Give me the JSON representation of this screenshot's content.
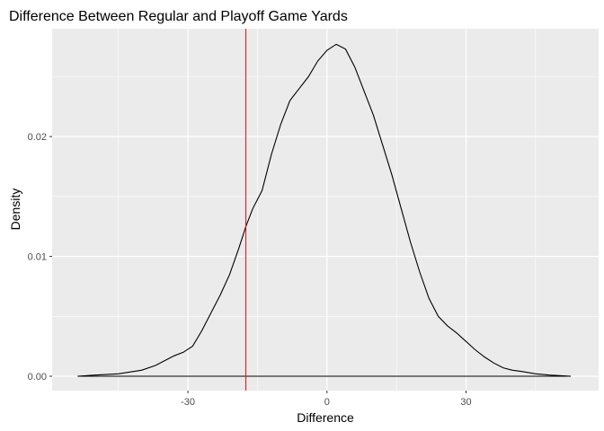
{
  "chart_data": {
    "type": "line",
    "title": "Difference Between Regular and Playoff Game Yards",
    "xlabel": "Difference",
    "ylabel": "Density",
    "xlim": [
      -59.3,
      58.6
    ],
    "ylim": [
      -0.0012,
      0.029
    ],
    "x_ticks": [
      -30,
      0,
      30
    ],
    "y_ticks": [
      0.0,
      0.01,
      0.02
    ],
    "y_tick_labels": [
      "0.00",
      "0.01",
      "0.02"
    ],
    "x_minor_ticks": [
      -45,
      -15,
      15,
      45
    ],
    "y_minor_ticks": [
      0.005,
      0.015,
      0.025
    ],
    "grid": true,
    "legend": "none",
    "panel_background": "#ebebeb",
    "grid_color": "#ffffff",
    "series": [
      {
        "color": "#000000",
        "x": [
          -53.8,
          -50,
          -45,
          -40,
          -37,
          -35,
          -33,
          -31,
          -29,
          -27,
          -25,
          -23,
          -21,
          -19,
          -17.5,
          -16,
          -14,
          -12,
          -10,
          -8,
          -6,
          -4,
          -2,
          0,
          2,
          4,
          6,
          8,
          10,
          12,
          14,
          16,
          18,
          20,
          22,
          24,
          26,
          28,
          30,
          32,
          34,
          36,
          38,
          40,
          42,
          45,
          48,
          52.6
        ],
        "y": [
          0.0,
          0.0001,
          0.0002,
          0.0005,
          0.0009,
          0.0013,
          0.0017,
          0.002,
          0.0025,
          0.0038,
          0.0053,
          0.0068,
          0.0085,
          0.0107,
          0.0125,
          0.014,
          0.0155,
          0.0185,
          0.021,
          0.023,
          0.024,
          0.025,
          0.0263,
          0.0272,
          0.0277,
          0.0273,
          0.0258,
          0.0238,
          0.0218,
          0.0193,
          0.0168,
          0.014,
          0.0112,
          0.0087,
          0.0065,
          0.005,
          0.0042,
          0.0036,
          0.0029,
          0.0022,
          0.0016,
          0.0011,
          0.0007,
          0.0005,
          0.0004,
          0.0002,
          0.0001,
          0.0
        ]
      }
    ],
    "reference_line": {
      "x": -17.5,
      "color": "#ff0000"
    }
  }
}
